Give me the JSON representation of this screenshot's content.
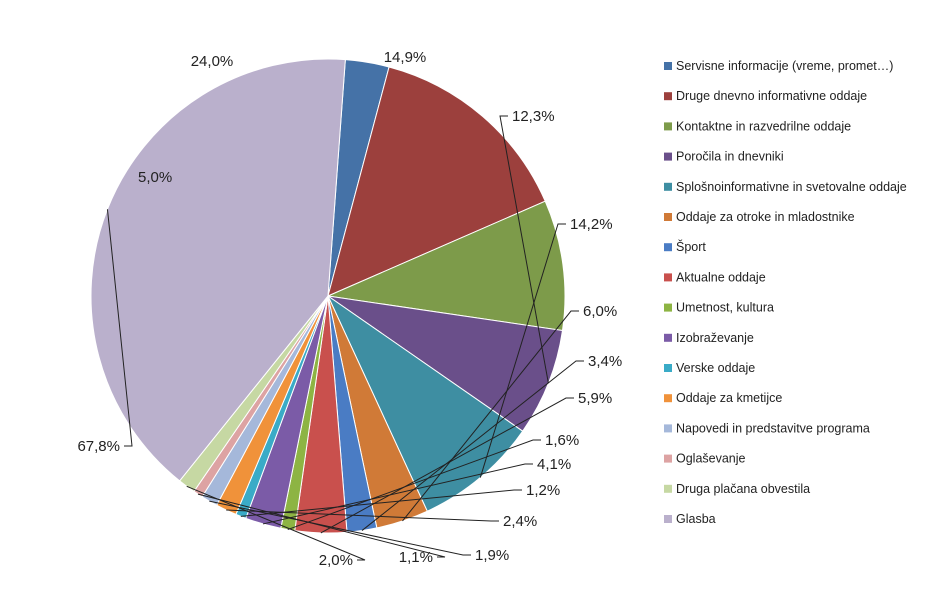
{
  "chart_data": {
    "type": "pie",
    "title": "",
    "legend_position": "right",
    "series": [
      {
        "name": "Servisne informacije (vreme, promet…)",
        "label": "5,0%",
        "value": 5.0,
        "color": "#4572A7"
      },
      {
        "name": "Druge dnevno informativne oddaje",
        "label": "24,0%",
        "value": 24.0,
        "color": "#9C403D"
      },
      {
        "name": "Kontaktne in razvedrilne oddaje",
        "label": "14,9%",
        "value": 14.9,
        "color": "#7D9B4A"
      },
      {
        "name": "Poročila in dnevniki",
        "label": "12,3%",
        "value": 12.3,
        "color": "#6A4F8A"
      },
      {
        "name": "Splošnoinformativne in svetovalne oddaje",
        "label": "14,2%",
        "value": 14.2,
        "color": "#3E8EA2"
      },
      {
        "name": "Oddaje za otroke in mladostnike",
        "label": "6,0%",
        "value": 6.0,
        "color": "#D07A37"
      },
      {
        "name": "Šport",
        "label": "3,4%",
        "value": 3.4,
        "color": "#4A7CC4"
      },
      {
        "name": "Aktualne oddaje",
        "label": "5,9%",
        "value": 5.9,
        "color": "#C9504D"
      },
      {
        "name": "Umetnost, kultura",
        "label": "1,6%",
        "value": 1.6,
        "color": "#8DB443"
      },
      {
        "name": "Izobraževanje",
        "label": "4,1%",
        "value": 4.1,
        "color": "#7B5BA7"
      },
      {
        "name": "Verske oddaje",
        "label": "1,2%",
        "value": 1.2,
        "color": "#3AABC7"
      },
      {
        "name": "Oddaje za kmetijce",
        "label": "2,4%",
        "value": 2.4,
        "color": "#F0923A"
      },
      {
        "name": "Napovedi in predstavitve programa",
        "label": "1,9%",
        "value": 1.9,
        "color": "#A5B8DA"
      },
      {
        "name": "Oglaševanje",
        "label": "1,1%",
        "value": 1.1,
        "color": "#DDA3A3"
      },
      {
        "name": "Druga plačana obvestila",
        "label": "2,0%",
        "value": 2.0,
        "color": "#C6D8A3"
      },
      {
        "name": "Glasba",
        "label": "67,8%",
        "value": 67.8,
        "color": "#BAB0CC"
      }
    ]
  }
}
